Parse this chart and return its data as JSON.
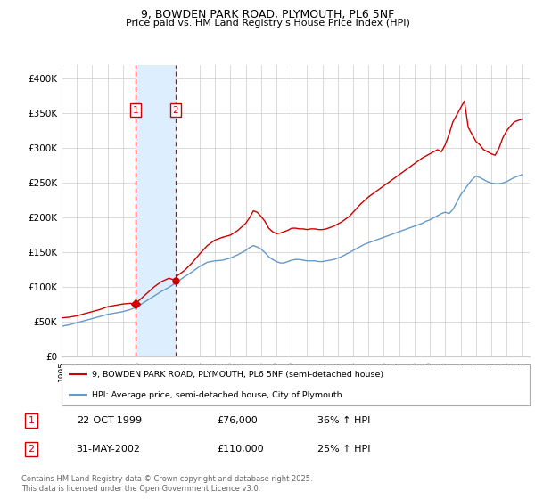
{
  "title_line1": "9, BOWDEN PARK ROAD, PLYMOUTH, PL6 5NF",
  "title_line2": "Price paid vs. HM Land Registry's House Price Index (HPI)",
  "ylabel_ticks": [
    "£0",
    "£50K",
    "£100K",
    "£150K",
    "£200K",
    "£250K",
    "£300K",
    "£350K",
    "£400K"
  ],
  "ytick_values": [
    0,
    50000,
    100000,
    150000,
    200000,
    250000,
    300000,
    350000,
    400000
  ],
  "ylim": [
    0,
    420000
  ],
  "xlim_start": 1995.0,
  "xlim_end": 2025.5,
  "purchase1_date": 1999.81,
  "purchase1_price": 76000,
  "purchase1_label": "1",
  "purchase2_date": 2002.42,
  "purchase2_price": 110000,
  "purchase2_label": "2",
  "purchase1_info": "22-OCT-1999",
  "purchase1_price_str": "£76,000",
  "purchase1_hpi": "36% ↑ HPI",
  "purchase2_info": "31-MAY-2002",
  "purchase2_price_str": "£110,000",
  "purchase2_hpi": "25% ↑ HPI",
  "legend_property": "9, BOWDEN PARK ROAD, PLYMOUTH, PL6 5NF (semi-detached house)",
  "legend_hpi": "HPI: Average price, semi-detached house, City of Plymouth",
  "footer": "Contains HM Land Registry data © Crown copyright and database right 2025.\nThis data is licensed under the Open Government Licence v3.0.",
  "property_color": "#cc0000",
  "hpi_color": "#6699cc",
  "shade_color": "#ddeeff",
  "background_color": "#ffffff",
  "grid_color": "#cccccc",
  "hpi_x": [
    1995.0,
    1995.5,
    1996.0,
    1996.5,
    1997.0,
    1997.5,
    1998.0,
    1998.5,
    1999.0,
    1999.5,
    2000.0,
    2000.5,
    2001.0,
    2001.5,
    2002.0,
    2002.5,
    2003.0,
    2003.5,
    2004.0,
    2004.5,
    2005.0,
    2005.5,
    2006.0,
    2006.5,
    2007.0,
    2007.25,
    2007.5,
    2007.75,
    2008.0,
    2008.25,
    2008.5,
    2008.75,
    2009.0,
    2009.25,
    2009.5,
    2009.75,
    2010.0,
    2010.25,
    2010.5,
    2010.75,
    2011.0,
    2011.25,
    2011.5,
    2011.75,
    2012.0,
    2012.25,
    2012.5,
    2012.75,
    2013.0,
    2013.25,
    2013.5,
    2013.75,
    2014.0,
    2014.25,
    2014.5,
    2014.75,
    2015.0,
    2015.25,
    2015.5,
    2015.75,
    2016.0,
    2016.25,
    2016.5,
    2016.75,
    2017.0,
    2017.25,
    2017.5,
    2017.75,
    2018.0,
    2018.25,
    2018.5,
    2018.75,
    2019.0,
    2019.25,
    2019.5,
    2019.75,
    2020.0,
    2020.25,
    2020.5,
    2020.75,
    2021.0,
    2021.25,
    2021.5,
    2021.75,
    2022.0,
    2022.25,
    2022.5,
    2022.75,
    2023.0,
    2023.25,
    2023.5,
    2023.75,
    2024.0,
    2024.25,
    2024.5,
    2024.75,
    2025.0
  ],
  "hpi_y": [
    44000,
    46000,
    49000,
    52000,
    55000,
    58000,
    61000,
    63000,
    65000,
    68000,
    73000,
    80000,
    87000,
    94000,
    100000,
    107000,
    115000,
    122000,
    130000,
    136000,
    138000,
    139000,
    142000,
    147000,
    153000,
    157000,
    160000,
    158000,
    155000,
    150000,
    144000,
    140000,
    137000,
    135000,
    135000,
    137000,
    139000,
    140000,
    140000,
    139000,
    138000,
    138000,
    138000,
    137000,
    137000,
    138000,
    139000,
    140000,
    142000,
    144000,
    147000,
    150000,
    153000,
    156000,
    159000,
    162000,
    164000,
    166000,
    168000,
    170000,
    172000,
    174000,
    176000,
    178000,
    180000,
    182000,
    184000,
    186000,
    188000,
    190000,
    192000,
    195000,
    197000,
    200000,
    203000,
    206000,
    208000,
    206000,
    212000,
    222000,
    233000,
    240000,
    248000,
    255000,
    260000,
    258000,
    255000,
    252000,
    250000,
    249000,
    249000,
    250000,
    252000,
    255000,
    258000,
    260000,
    262000
  ],
  "prop_x": [
    1995.0,
    1995.5,
    1996.0,
    1996.5,
    1997.0,
    1997.5,
    1998.0,
    1998.5,
    1999.0,
    1999.5,
    1999.81,
    2000.0,
    2000.5,
    2001.0,
    2001.5,
    2002.0,
    2002.42,
    2002.5,
    2003.0,
    2003.5,
    2004.0,
    2004.5,
    2005.0,
    2005.5,
    2006.0,
    2006.5,
    2007.0,
    2007.25,
    2007.5,
    2007.75,
    2008.0,
    2008.25,
    2008.5,
    2008.75,
    2009.0,
    2009.25,
    2009.5,
    2009.75,
    2010.0,
    2010.25,
    2010.5,
    2010.75,
    2011.0,
    2011.25,
    2011.5,
    2011.75,
    2012.0,
    2012.25,
    2012.5,
    2012.75,
    2013.0,
    2013.25,
    2013.5,
    2013.75,
    2014.0,
    2014.25,
    2014.5,
    2014.75,
    2015.0,
    2015.25,
    2015.5,
    2015.75,
    2016.0,
    2016.25,
    2016.5,
    2016.75,
    2017.0,
    2017.25,
    2017.5,
    2017.75,
    2018.0,
    2018.25,
    2018.5,
    2018.75,
    2019.0,
    2019.25,
    2019.5,
    2019.75,
    2020.0,
    2020.25,
    2020.5,
    2020.75,
    2021.0,
    2021.25,
    2021.5,
    2021.75,
    2022.0,
    2022.25,
    2022.5,
    2022.75,
    2023.0,
    2023.25,
    2023.5,
    2023.75,
    2024.0,
    2024.25,
    2024.5,
    2024.75,
    2025.0
  ],
  "prop_y": [
    56000,
    57000,
    59000,
    62000,
    65000,
    68000,
    72000,
    74000,
    76000,
    77000,
    76000,
    80000,
    90000,
    100000,
    108000,
    113000,
    110000,
    116000,
    124000,
    135000,
    148000,
    160000,
    168000,
    172000,
    175000,
    182000,
    192000,
    200000,
    210000,
    208000,
    202000,
    195000,
    185000,
    180000,
    177000,
    178000,
    180000,
    182000,
    185000,
    185000,
    184000,
    184000,
    183000,
    184000,
    184000,
    183000,
    183000,
    184000,
    186000,
    188000,
    191000,
    194000,
    198000,
    202000,
    208000,
    214000,
    220000,
    225000,
    230000,
    234000,
    238000,
    242000,
    246000,
    250000,
    254000,
    258000,
    262000,
    266000,
    270000,
    274000,
    278000,
    282000,
    286000,
    289000,
    292000,
    295000,
    298000,
    295000,
    305000,
    320000,
    338000,
    348000,
    358000,
    368000,
    330000,
    320000,
    310000,
    305000,
    298000,
    295000,
    292000,
    290000,
    300000,
    315000,
    325000,
    332000,
    338000,
    340000,
    342000
  ]
}
